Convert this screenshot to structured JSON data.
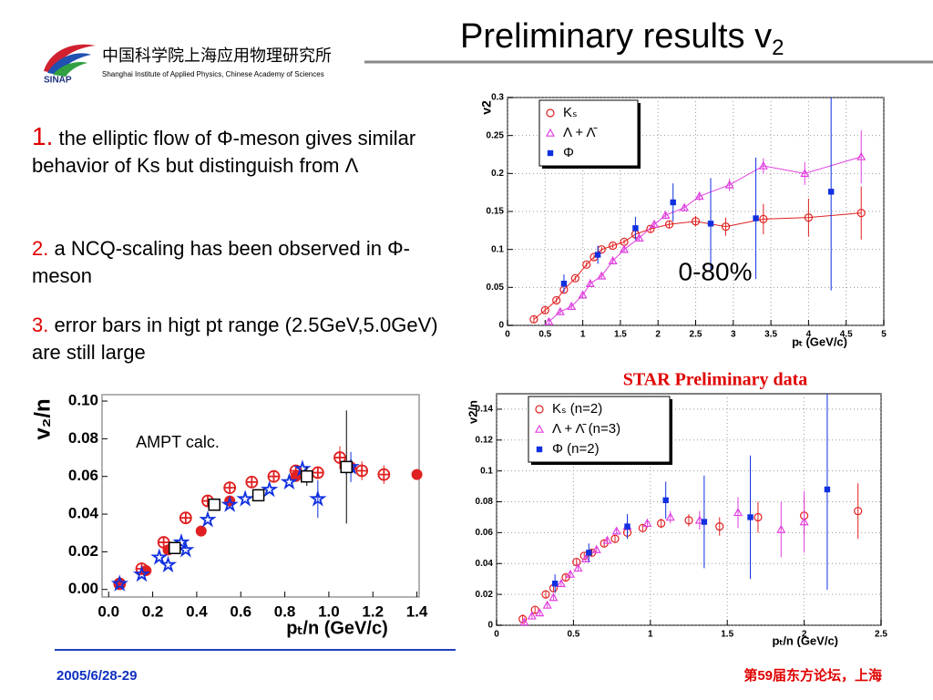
{
  "header": {
    "title": "Preliminary results v",
    "title_sub": "2"
  },
  "logo": {
    "chinese": "中国科学院上海应用物理研究所",
    "english": "Shanghai Institute of Applied Physics, Chinese Academy of Sciences",
    "short": "SINAP"
  },
  "points": [
    {
      "number": "1.",
      "text": "the elliptic flow of Φ-meson gives similar behavior of Ks but distinguish from Λ"
    },
    {
      "number": "2.",
      "text": "a NCQ-scaling has been observed in Φ-meson"
    },
    {
      "number": "3.",
      "text": "error bars in higt pt range (2.5GeV,5.0GeV) are still large"
    }
  ],
  "star_label": "STAR Preliminary data",
  "footer": {
    "date": "2005/6/28-29",
    "event": "第59届东方论坛，上海"
  },
  "chart_data": [
    {
      "type": "scatter",
      "ylabel": "v2",
      "xlabel": "pₜ (GeV/c)",
      "annotation": "0-80%",
      "xlim": [
        0,
        5
      ],
      "ylim": [
        0,
        0.3
      ],
      "xticks": [
        0,
        0.5,
        1,
        1.5,
        2,
        2.5,
        3,
        3.5,
        4,
        4.5,
        5
      ],
      "yticks": [
        0,
        0.05,
        0.1,
        0.15,
        0.2,
        0.25,
        0.3
      ],
      "grid": true,
      "legend": "upper-left",
      "series": [
        {
          "name": "Kₛ",
          "color": "#e02020",
          "marker": "circle-open",
          "line": true,
          "x": [
            0.35,
            0.5,
            0.65,
            0.75,
            0.9,
            1.05,
            1.15,
            1.25,
            1.4,
            1.55,
            1.7,
            1.9,
            2.15,
            2.5,
            2.9,
            3.4,
            4.0,
            4.7
          ],
          "values": [
            0.008,
            0.02,
            0.033,
            0.047,
            0.062,
            0.08,
            0.09,
            0.1,
            0.105,
            0.11,
            0.12,
            0.127,
            0.133,
            0.137,
            0.13,
            0.14,
            0.142,
            0.148
          ],
          "errors": [
            0.005,
            0.004,
            0.003,
            0.003,
            0.003,
            0.003,
            0.003,
            0.003,
            0.003,
            0.003,
            0.004,
            0.004,
            0.005,
            0.007,
            0.012,
            0.02,
            0.025,
            0.035
          ]
        },
        {
          "name": "Λ + Λ̄",
          "color": "#e040e0",
          "marker": "triangle-open",
          "line": true,
          "x": [
            0.55,
            0.7,
            0.85,
            1.0,
            1.1,
            1.25,
            1.4,
            1.55,
            1.75,
            1.95,
            2.1,
            2.35,
            2.55,
            2.95,
            3.4,
            3.95,
            4.7
          ],
          "values": [
            0.005,
            0.018,
            0.025,
            0.04,
            0.055,
            0.065,
            0.085,
            0.1,
            0.115,
            0.133,
            0.145,
            0.155,
            0.17,
            0.185,
            0.21,
            0.2,
            0.222
          ],
          "errors": [
            0.004,
            0.004,
            0.004,
            0.004,
            0.004,
            0.004,
            0.004,
            0.004,
            0.004,
            0.004,
            0.005,
            0.005,
            0.006,
            0.008,
            0.01,
            0.015,
            0.035
          ]
        },
        {
          "name": "Φ",
          "color": "#1030e0",
          "marker": "square",
          "line": false,
          "x": [
            0.75,
            1.2,
            1.7,
            2.2,
            2.7,
            3.3,
            4.3
          ],
          "values": [
            0.055,
            0.093,
            0.128,
            0.162,
            0.134,
            0.141,
            0.176
          ],
          "errors": [
            0.012,
            0.012,
            0.015,
            0.025,
            0.06,
            0.08,
            0.13
          ]
        }
      ]
    },
    {
      "type": "scatter",
      "ylabel": "v₂/n",
      "xlabel": "pₜ/n  (GeV/c)",
      "annotation": "AMPT calc.",
      "xlim": [
        -0.03,
        1.41
      ],
      "ylim": [
        -0.004,
        0.1034
      ],
      "xticks": [
        {
          "value": 0,
          "label": "0.0"
        },
        {
          "value": 0.2,
          "label": "0.2"
        },
        {
          "value": 0.4,
          "label": "0.4"
        },
        {
          "value": 0.6,
          "label": "0.6"
        },
        {
          "value": 0.8,
          "label": "0.8"
        },
        {
          "value": 1,
          "label": "1.0"
        },
        {
          "value": 1.2,
          "label": "1.2"
        },
        {
          "value": 1.4,
          "label": "1.4"
        }
      ],
      "yticks": [
        {
          "value": 0,
          "label": "0.00"
        },
        {
          "value": 0.02,
          "label": "0.02"
        },
        {
          "value": 0.04,
          "label": "0.04"
        },
        {
          "value": 0.06,
          "label": "0.06"
        },
        {
          "value": 0.08,
          "label": "0.08"
        },
        {
          "value": 0.1,
          "label": "0.10"
        }
      ],
      "grid": false,
      "series": [
        {
          "color": "#e02020",
          "marker": "circle-cross",
          "line": false,
          "x": [
            0.05,
            0.15,
            0.25,
            0.35,
            0.45,
            0.55,
            0.65,
            0.75,
            0.85,
            0.95,
            1.05,
            1.15,
            1.25
          ],
          "values": [
            0.003,
            0.011,
            0.025,
            0.038,
            0.047,
            0.054,
            0.057,
            0.06,
            0.063,
            0.062,
            0.07,
            0.063,
            0.061
          ],
          "errors": [
            null,
            null,
            null,
            null,
            null,
            null,
            null,
            null,
            null,
            null,
            0.006,
            0.005,
            0.005
          ]
        },
        {
          "color": "#e02020",
          "marker": "circle",
          "line": false,
          "x": [
            0.05,
            0.17,
            0.27,
            0.42,
            0.55,
            0.85,
            1.1,
            1.4
          ],
          "values": [
            0.003,
            0.01,
            0.021,
            0.031,
            0.047,
            0.06,
            0.065,
            0.061
          ],
          "errors": [
            null,
            null,
            null,
            null,
            null,
            null,
            null,
            null
          ]
        },
        {
          "color": "#1030e0",
          "marker": "star",
          "line": false,
          "x": [
            0.05,
            0.15,
            0.23,
            0.27,
            0.33,
            0.35,
            0.45,
            0.55,
            0.62,
            0.73,
            0.82,
            0.88,
            0.95,
            1.1
          ],
          "values": [
            0.003,
            0.008,
            0.017,
            0.013,
            0.025,
            0.021,
            0.037,
            0.045,
            0.048,
            0.053,
            0.057,
            0.064,
            0.048,
            0.065
          ],
          "errors": [
            null,
            null,
            null,
            null,
            null,
            null,
            null,
            null,
            null,
            null,
            null,
            null,
            0.01,
            0.008
          ]
        },
        {
          "color": "#000000",
          "marker": "square-open",
          "line": false,
          "x": [
            0.3,
            0.48,
            0.68,
            0.9,
            1.08
          ],
          "values": [
            0.022,
            0.045,
            0.05,
            0.06,
            0.065
          ],
          "errors": [
            null,
            null,
            null,
            0.005,
            0.03
          ]
        }
      ]
    },
    {
      "type": "scatter",
      "ylabel": "v2/n",
      "xlabel": "pₜ/n (GeV/c)",
      "xlim": [
        0,
        2.5
      ],
      "ylim": [
        0,
        0.15
      ],
      "xticks": [
        0,
        0.5,
        1,
        1.5,
        2,
        2.5
      ],
      "yticks": [
        0,
        0.02,
        0.04,
        0.06,
        0.08,
        0.1,
        0.12,
        0.14
      ],
      "grid": true,
      "legend": "upper-left",
      "series": [
        {
          "name": "Kₛ (n=2)",
          "color": "#e02020",
          "marker": "circle-open",
          "line": false,
          "x": [
            0.17,
            0.25,
            0.32,
            0.37,
            0.45,
            0.52,
            0.57,
            0.62,
            0.7,
            0.77,
            0.85,
            0.95,
            1.07,
            1.25,
            1.45,
            1.7,
            2.0,
            2.35
          ],
          "values": [
            0.004,
            0.01,
            0.02,
            0.024,
            0.031,
            0.041,
            0.045,
            0.047,
            0.053,
            0.056,
            0.06,
            0.063,
            0.066,
            0.068,
            0.064,
            0.07,
            0.071,
            0.074
          ],
          "errors": [
            0.003,
            0.002,
            0.002,
            0.002,
            0.002,
            0.002,
            0.002,
            0.002,
            0.002,
            0.002,
            0.002,
            0.002,
            0.003,
            0.004,
            0.006,
            0.01,
            0.012,
            0.018
          ]
        },
        {
          "name": "Λ + Λ̄ (n=3)",
          "color": "#e040e0",
          "marker": "triangle-open",
          "line": false,
          "x": [
            0.18,
            0.23,
            0.28,
            0.33,
            0.37,
            0.42,
            0.48,
            0.53,
            0.58,
            0.65,
            0.72,
            0.78,
            0.85,
            0.98,
            1.13,
            1.32,
            1.57,
            1.85,
            2.0
          ],
          "values": [
            0.002,
            0.006,
            0.008,
            0.013,
            0.018,
            0.027,
            0.033,
            0.037,
            0.043,
            0.049,
            0.055,
            0.061,
            0.064,
            0.066,
            0.07,
            0.068,
            0.073,
            0.062,
            0.067
          ],
          "errors": [
            0.002,
            0.002,
            0.002,
            0.002,
            0.002,
            0.002,
            0.002,
            0.002,
            0.002,
            0.002,
            0.002,
            0.002,
            0.002,
            0.003,
            0.004,
            0.006,
            0.01,
            0.018,
            0.02
          ]
        },
        {
          "name": "Φ (n=2)",
          "color": "#1030e0",
          "marker": "square",
          "line": false,
          "x": [
            0.38,
            0.6,
            0.85,
            1.1,
            1.35,
            1.65,
            2.15
          ],
          "values": [
            0.027,
            0.047,
            0.064,
            0.081,
            0.067,
            0.07,
            0.088
          ],
          "errors": [
            0.006,
            0.006,
            0.008,
            0.012,
            0.03,
            0.04,
            0.065
          ]
        }
      ]
    }
  ]
}
